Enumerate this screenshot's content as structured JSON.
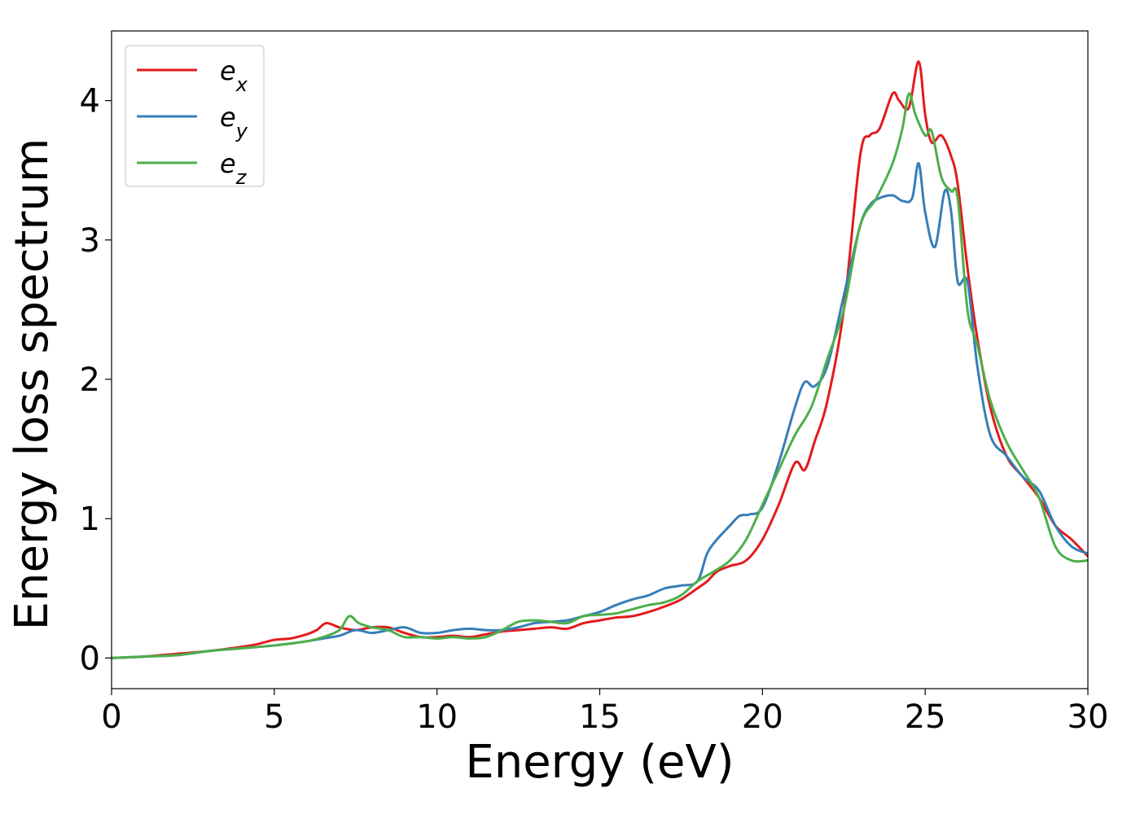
{
  "chart_data": {
    "type": "line",
    "xlabel": "Energy (eV)",
    "ylabel": "Energy loss spectrum",
    "xlim": [
      0,
      30
    ],
    "ylim": [
      -0.22,
      4.5
    ],
    "xticks": [
      0,
      5,
      10,
      15,
      20,
      25,
      30
    ],
    "yticks": [
      0,
      1,
      2,
      3,
      4
    ],
    "grid": false,
    "legend_position": "upper-left",
    "series": [
      {
        "name": "e_x",
        "base": "e",
        "sub": "x",
        "color": "#e41a1c",
        "x": [
          0,
          1,
          2,
          3,
          4,
          4.5,
          5,
          5.5,
          6,
          6.3,
          6.6,
          7,
          7.5,
          8,
          8.5,
          9,
          9.5,
          10,
          10.5,
          11,
          11.5,
          12,
          12.5,
          13,
          13.5,
          14,
          14.5,
          15,
          15.5,
          16,
          16.5,
          17,
          17.5,
          18,
          18.3,
          18.6,
          19,
          19.5,
          20,
          20.5,
          21,
          21.3,
          21.6,
          22,
          22.5,
          23,
          23.3,
          23.6,
          24,
          24.2,
          24.5,
          24.8,
          25,
          25.2,
          25.5,
          25.8,
          26,
          26.3,
          26.6,
          27,
          27.5,
          28,
          28.5,
          29,
          29.5,
          30
        ],
        "values": [
          0,
          0.01,
          0.03,
          0.05,
          0.08,
          0.1,
          0.13,
          0.14,
          0.17,
          0.2,
          0.25,
          0.22,
          0.2,
          0.22,
          0.22,
          0.18,
          0.15,
          0.15,
          0.16,
          0.15,
          0.17,
          0.19,
          0.2,
          0.21,
          0.22,
          0.21,
          0.25,
          0.27,
          0.29,
          0.3,
          0.33,
          0.37,
          0.42,
          0.5,
          0.55,
          0.62,
          0.66,
          0.7,
          0.85,
          1.1,
          1.4,
          1.35,
          1.55,
          1.85,
          2.5,
          3.6,
          3.75,
          3.8,
          4.05,
          4.0,
          3.95,
          4.28,
          3.9,
          3.7,
          3.75,
          3.6,
          3.4,
          2.8,
          2.3,
          1.8,
          1.45,
          1.3,
          1.15,
          0.95,
          0.85,
          0.73
        ]
      },
      {
        "name": "e_y",
        "base": "e",
        "sub": "y",
        "color": "#377eb8",
        "x": [
          0,
          1,
          2,
          3,
          4,
          5,
          6,
          6.5,
          7,
          7.5,
          8,
          8.5,
          9,
          9.5,
          10,
          10.5,
          11,
          11.5,
          12,
          12.5,
          13,
          13.5,
          14,
          14.5,
          15,
          15.5,
          16,
          16.5,
          17,
          17.5,
          18,
          18.3,
          18.6,
          19,
          19.3,
          19.6,
          20,
          20.5,
          21,
          21.3,
          21.6,
          22,
          22.5,
          23,
          23.3,
          23.6,
          24,
          24.3,
          24.6,
          24.8,
          25,
          25.3,
          25.6,
          25.8,
          26,
          26.3,
          26.6,
          27,
          27.5,
          28,
          28.5,
          29,
          29.5,
          30
        ],
        "values": [
          0,
          0.01,
          0.02,
          0.05,
          0.07,
          0.09,
          0.12,
          0.14,
          0.16,
          0.2,
          0.18,
          0.2,
          0.22,
          0.18,
          0.18,
          0.2,
          0.21,
          0.2,
          0.2,
          0.22,
          0.25,
          0.26,
          0.27,
          0.3,
          0.33,
          0.38,
          0.42,
          0.45,
          0.5,
          0.52,
          0.55,
          0.75,
          0.85,
          0.95,
          1.02,
          1.03,
          1.08,
          1.4,
          1.8,
          1.98,
          1.95,
          2.1,
          2.6,
          3.1,
          3.25,
          3.3,
          3.32,
          3.28,
          3.3,
          3.55,
          3.2,
          2.95,
          3.35,
          3.2,
          2.7,
          2.7,
          2.1,
          1.6,
          1.45,
          1.3,
          1.2,
          0.95,
          0.8,
          0.75
        ]
      },
      {
        "name": "e_z",
        "base": "e",
        "sub": "z",
        "color": "#4daf4a",
        "x": [
          0,
          1,
          2,
          3,
          4,
          5,
          6,
          6.5,
          7,
          7.3,
          7.6,
          8,
          8.5,
          9,
          9.5,
          10,
          10.5,
          11,
          11.5,
          12,
          12.5,
          13,
          13.5,
          14,
          14.5,
          15,
          15.5,
          16,
          16.5,
          17,
          17.5,
          18,
          18.5,
          19,
          19.5,
          20,
          20.5,
          21,
          21.5,
          22,
          22.5,
          23,
          23.5,
          24,
          24.3,
          24.5,
          24.7,
          25,
          25.2,
          25.5,
          25.8,
          26,
          26.3,
          26.6,
          27,
          27.5,
          28,
          28.5,
          29,
          29.5,
          30
        ],
        "values": [
          0,
          0.01,
          0.02,
          0.05,
          0.07,
          0.09,
          0.12,
          0.15,
          0.2,
          0.3,
          0.25,
          0.22,
          0.2,
          0.15,
          0.15,
          0.14,
          0.15,
          0.14,
          0.15,
          0.2,
          0.26,
          0.27,
          0.26,
          0.25,
          0.3,
          0.31,
          0.32,
          0.35,
          0.38,
          0.4,
          0.45,
          0.55,
          0.62,
          0.7,
          0.85,
          1.1,
          1.35,
          1.6,
          1.8,
          2.15,
          2.5,
          3.1,
          3.3,
          3.55,
          3.8,
          4.05,
          3.9,
          3.75,
          3.78,
          3.45,
          3.35,
          3.3,
          2.5,
          2.25,
          1.85,
          1.55,
          1.35,
          1.15,
          0.8,
          0.7,
          0.7
        ]
      }
    ]
  }
}
